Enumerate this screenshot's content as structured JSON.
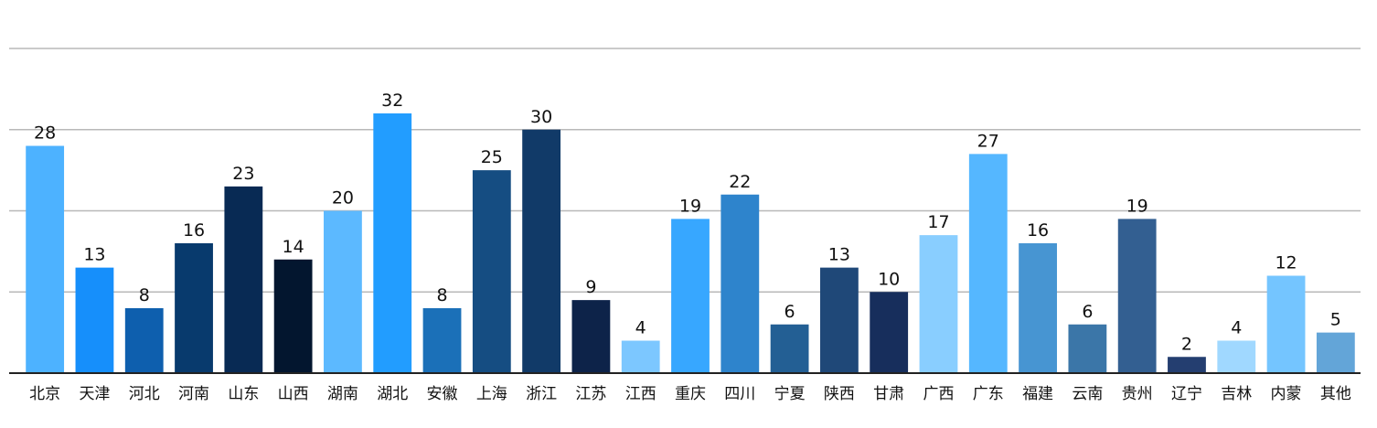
{
  "chart_data": {
    "type": "bar",
    "categories": [
      "北京",
      "天津",
      "河北",
      "河南",
      "山东",
      "山西",
      "湖南",
      "湖北",
      "安徽",
      "上海",
      "浙江",
      "江苏",
      "江西",
      "重庆",
      "四川",
      "宁夏",
      "陕西",
      "甘肃",
      "广西",
      "广东",
      "福建",
      "云南",
      "贵州",
      "辽宁",
      "吉林",
      "内蒙",
      "其他"
    ],
    "values": [
      28,
      13,
      8,
      16,
      23,
      14,
      20,
      32,
      8,
      25,
      30,
      9,
      4,
      19,
      22,
      6,
      13,
      10,
      17,
      27,
      16,
      6,
      19,
      2,
      4,
      12,
      5
    ],
    "colors": [
      "#4db2ff",
      "#168ffb",
      "#0e5fae",
      "#083a6d",
      "#082a54",
      "#03162f",
      "#5cb9ff",
      "#229dff",
      "#1b70b8",
      "#154d82",
      "#113a68",
      "#0d2349",
      "#7cc7ff",
      "#37a7ff",
      "#2e84cc",
      "#235f94",
      "#1f4878",
      "#172e5c",
      "#89ceff",
      "#55b7ff",
      "#4795d2",
      "#3b76a8",
      "#335f91",
      "#243e70",
      "#a0d8ff",
      "#74c5ff",
      "#63a5d8"
    ],
    "ylim": [
      0,
      40
    ],
    "gridlines": [
      0,
      10,
      20,
      30,
      40
    ],
    "grid": true,
    "legend": "none"
  }
}
